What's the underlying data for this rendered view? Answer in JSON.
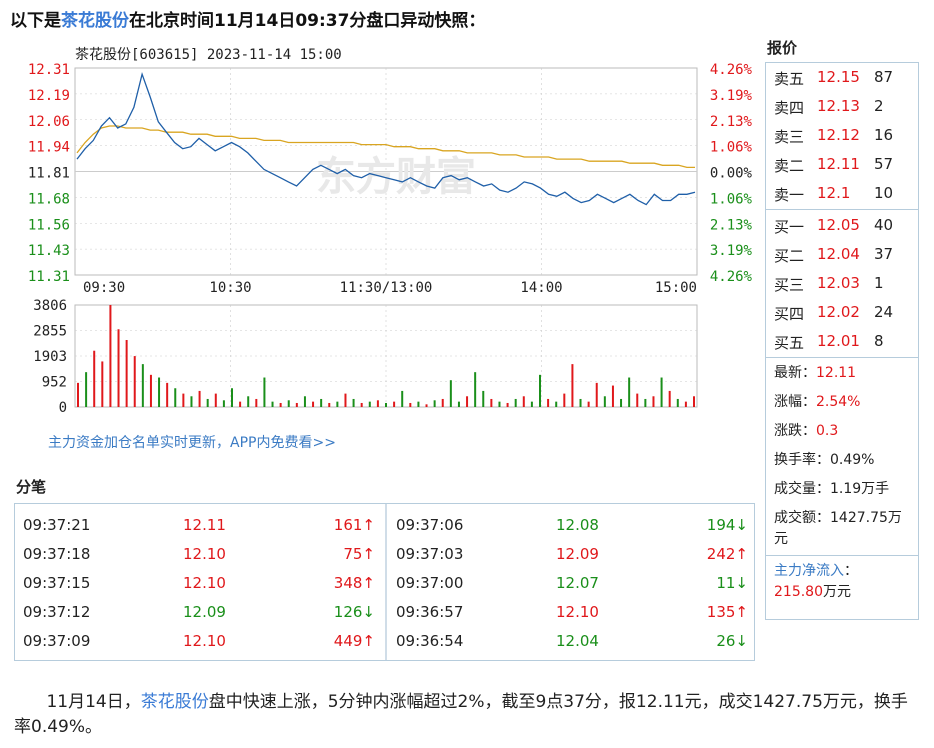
{
  "headline": {
    "prefix": "以下是",
    "stock_name": "茶花股份",
    "suffix": "在北京时间11月14日09:37分盘口异动快照："
  },
  "chart": {
    "header": "茶花股份[603615] 2023-11-14 15:00",
    "watermark": "东方财富",
    "price_ticks": [
      "12.31",
      "12.19",
      "12.06",
      "11.94",
      "11.81",
      "11.68",
      "11.56",
      "11.43",
      "11.31"
    ],
    "pct_ticks": [
      "4.26%",
      "3.19%",
      "2.13%",
      "1.06%",
      "0.00%",
      "1.06%",
      "2.13%",
      "3.19%",
      "4.26%"
    ],
    "time_ticks": [
      "09:30",
      "10:30",
      "11:30/13:00",
      "14:00",
      "15:00"
    ],
    "volume_ticks": [
      "3806",
      "2855",
      "1903",
      "952",
      "0"
    ],
    "colors": {
      "up": "#e0181b",
      "down": "#1a8f1a",
      "price_line": "#1f5fa8",
      "avg_line": "#d9a521",
      "grid": "#cccccc"
    }
  },
  "chart_data": {
    "type": "line",
    "price_range": [
      11.31,
      12.31
    ],
    "prev_close": 11.81,
    "time_axis": [
      "09:30",
      "10:30",
      "11:30/13:00",
      "14:00",
      "15:00"
    ],
    "series": [
      {
        "values": [
          11.87,
          11.92,
          11.96,
          12.03,
          12.07,
          12.02,
          12.04,
          12.12,
          12.28,
          12.17,
          12.05,
          12.0,
          11.95,
          11.92,
          11.93,
          11.97,
          11.94,
          11.91,
          11.93,
          11.95,
          11.93,
          11.9,
          11.86,
          11.82,
          11.8,
          11.78,
          11.76,
          11.74,
          11.78,
          11.82,
          11.84,
          11.82,
          11.8,
          11.82,
          11.79,
          11.78,
          11.8,
          11.79,
          11.78,
          11.77,
          11.76,
          11.78,
          11.76,
          11.74,
          11.73,
          11.78,
          11.79,
          11.77,
          11.78,
          11.76,
          11.74,
          11.75,
          11.72,
          11.71,
          11.73,
          11.76,
          11.75,
          11.73,
          11.7,
          11.69,
          11.71,
          11.68,
          11.66,
          11.67,
          11.7,
          11.68,
          11.66,
          11.68,
          11.7,
          11.67,
          11.65,
          11.7,
          11.67,
          11.67,
          11.7,
          11.7,
          11.71
        ]
      },
      {
        "values": [
          11.9,
          11.95,
          11.99,
          12.02,
          12.03,
          12.03,
          12.02,
          12.02,
          12.02,
          12.01,
          12.01,
          12.0,
          12.0,
          12.0,
          11.99,
          11.99,
          11.99,
          11.98,
          11.98,
          11.98,
          11.97,
          11.97,
          11.97,
          11.96,
          11.96,
          11.96,
          11.95,
          11.95,
          11.95,
          11.95,
          11.95,
          11.95,
          11.95,
          11.95,
          11.95,
          11.94,
          11.94,
          11.94,
          11.94,
          11.93,
          11.93,
          11.93,
          11.92,
          11.92,
          11.92,
          11.91,
          11.91,
          11.91,
          11.9,
          11.9,
          11.9,
          11.9,
          11.89,
          11.89,
          11.89,
          11.88,
          11.88,
          11.88,
          11.88,
          11.87,
          11.87,
          11.87,
          11.87,
          11.86,
          11.86,
          11.86,
          11.86,
          11.86,
          11.85,
          11.85,
          11.85,
          11.85,
          11.84,
          11.84,
          11.84,
          11.83,
          11.83
        ]
      }
    ],
    "volume_range": [
      0,
      3806
    ],
    "volumes": [
      {
        "v": 900,
        "d": "up"
      },
      {
        "v": 1300,
        "d": "down"
      },
      {
        "v": 2100,
        "d": "up"
      },
      {
        "v": 1700,
        "d": "up"
      },
      {
        "v": 3806,
        "d": "up"
      },
      {
        "v": 2900,
        "d": "up"
      },
      {
        "v": 2500,
        "d": "up"
      },
      {
        "v": 1900,
        "d": "up"
      },
      {
        "v": 1600,
        "d": "down"
      },
      {
        "v": 1200,
        "d": "up"
      },
      {
        "v": 1100,
        "d": "down"
      },
      {
        "v": 900,
        "d": "up"
      },
      {
        "v": 700,
        "d": "down"
      },
      {
        "v": 500,
        "d": "up"
      },
      {
        "v": 400,
        "d": "down"
      },
      {
        "v": 600,
        "d": "up"
      },
      {
        "v": 300,
        "d": "down"
      },
      {
        "v": 500,
        "d": "up"
      },
      {
        "v": 250,
        "d": "down"
      },
      {
        "v": 700,
        "d": "down"
      },
      {
        "v": 200,
        "d": "up"
      },
      {
        "v": 400,
        "d": "down"
      },
      {
        "v": 300,
        "d": "up"
      },
      {
        "v": 1100,
        "d": "down"
      },
      {
        "v": 200,
        "d": "down"
      },
      {
        "v": 150,
        "d": "up"
      },
      {
        "v": 250,
        "d": "down"
      },
      {
        "v": 150,
        "d": "up"
      },
      {
        "v": 400,
        "d": "down"
      },
      {
        "v": 200,
        "d": "up"
      },
      {
        "v": 300,
        "d": "down"
      },
      {
        "v": 150,
        "d": "up"
      },
      {
        "v": 200,
        "d": "down"
      },
      {
        "v": 500,
        "d": "up"
      },
      {
        "v": 300,
        "d": "down"
      },
      {
        "v": 150,
        "d": "up"
      },
      {
        "v": 200,
        "d": "down"
      },
      {
        "v": 250,
        "d": "up"
      },
      {
        "v": 150,
        "d": "down"
      },
      {
        "v": 200,
        "d": "up"
      },
      {
        "v": 600,
        "d": "down"
      },
      {
        "v": 150,
        "d": "up"
      },
      {
        "v": 200,
        "d": "down"
      },
      {
        "v": 100,
        "d": "up"
      },
      {
        "v": 250,
        "d": "down"
      },
      {
        "v": 300,
        "d": "up"
      },
      {
        "v": 1000,
        "d": "down"
      },
      {
        "v": 200,
        "d": "down"
      },
      {
        "v": 400,
        "d": "up"
      },
      {
        "v": 1300,
        "d": "down"
      },
      {
        "v": 600,
        "d": "down"
      },
      {
        "v": 300,
        "d": "up"
      },
      {
        "v": 200,
        "d": "down"
      },
      {
        "v": 150,
        "d": "up"
      },
      {
        "v": 300,
        "d": "down"
      },
      {
        "v": 400,
        "d": "up"
      },
      {
        "v": 200,
        "d": "down"
      },
      {
        "v": 1200,
        "d": "down"
      },
      {
        "v": 300,
        "d": "up"
      },
      {
        "v": 200,
        "d": "down"
      },
      {
        "v": 500,
        "d": "up"
      },
      {
        "v": 1600,
        "d": "up"
      },
      {
        "v": 300,
        "d": "down"
      },
      {
        "v": 200,
        "d": "up"
      },
      {
        "v": 900,
        "d": "up"
      },
      {
        "v": 400,
        "d": "down"
      },
      {
        "v": 800,
        "d": "up"
      },
      {
        "v": 300,
        "d": "down"
      },
      {
        "v": 1100,
        "d": "down"
      },
      {
        "v": 500,
        "d": "up"
      },
      {
        "v": 300,
        "d": "down"
      },
      {
        "v": 400,
        "d": "up"
      },
      {
        "v": 1100,
        "d": "down"
      },
      {
        "v": 600,
        "d": "up"
      },
      {
        "v": 300,
        "d": "down"
      },
      {
        "v": 200,
        "d": "up"
      },
      {
        "v": 400,
        "d": "up"
      }
    ]
  },
  "promo_link": "主力资金加仓名单实时更新，APP内免费看>>",
  "ticks": {
    "title": "分笔",
    "left": [
      {
        "time": "09:37:21",
        "price": "12.11",
        "vol": "161↑",
        "dir": "up"
      },
      {
        "time": "09:37:18",
        "price": "12.10",
        "vol": "75↑",
        "dir": "up"
      },
      {
        "time": "09:37:15",
        "price": "12.10",
        "vol": "348↑",
        "dir": "up"
      },
      {
        "time": "09:37:12",
        "price": "12.09",
        "vol": "126↓",
        "dir": "down"
      },
      {
        "time": "09:37:09",
        "price": "12.10",
        "vol": "449↑",
        "dir": "up"
      }
    ],
    "right": [
      {
        "time": "09:37:06",
        "price": "12.08",
        "vol": "194↓",
        "dir": "down"
      },
      {
        "time": "09:37:03",
        "price": "12.09",
        "vol": "242↑",
        "dir": "up"
      },
      {
        "time": "09:37:00",
        "price": "12.07",
        "vol": "11↓",
        "dir": "down"
      },
      {
        "time": "09:36:57",
        "price": "12.10",
        "vol": "135↑",
        "dir": "up"
      },
      {
        "time": "09:36:54",
        "price": "12.04",
        "vol": "26↓",
        "dir": "down"
      }
    ]
  },
  "orderbook": {
    "title": "报价",
    "asks": [
      {
        "label": "卖五",
        "price": "12.15",
        "vol": "87"
      },
      {
        "label": "卖四",
        "price": "12.13",
        "vol": "2"
      },
      {
        "label": "卖三",
        "price": "12.12",
        "vol": "16"
      },
      {
        "label": "卖二",
        "price": "12.11",
        "vol": "57"
      },
      {
        "label": "卖一",
        "price": "12.1",
        "vol": "10"
      }
    ],
    "bids": [
      {
        "label": "买一",
        "price": "12.05",
        "vol": "40"
      },
      {
        "label": "买二",
        "price": "12.04",
        "vol": "37"
      },
      {
        "label": "买三",
        "price": "12.03",
        "vol": "1"
      },
      {
        "label": "买四",
        "price": "12.02",
        "vol": "24"
      },
      {
        "label": "买五",
        "price": "12.01",
        "vol": "8"
      }
    ],
    "stats": {
      "latest_label": "最新：",
      "latest": "12.11",
      "pct_label": "涨幅：",
      "pct": "2.54%",
      "change_label": "涨跌：",
      "change": "0.3",
      "turnover_rate_label": "换手率：",
      "turnover_rate": "0.49%",
      "volume_label": "成交量：",
      "volume": "1.19万手",
      "amount_label": "成交额：",
      "amount": "1427.75万元",
      "mainflow_label": "主力净流入",
      "mainflow_colon": "：",
      "mainflow": "215.80",
      "mainflow_unit": "万元"
    }
  },
  "article": {
    "date": "11月14日，",
    "stock_name": "茶花股份",
    "body": "盘中快速上涨，5分钟内涨幅超过2%，截至9点37分，报12.11元，成交1427.75万元，换手率0.49%。"
  }
}
